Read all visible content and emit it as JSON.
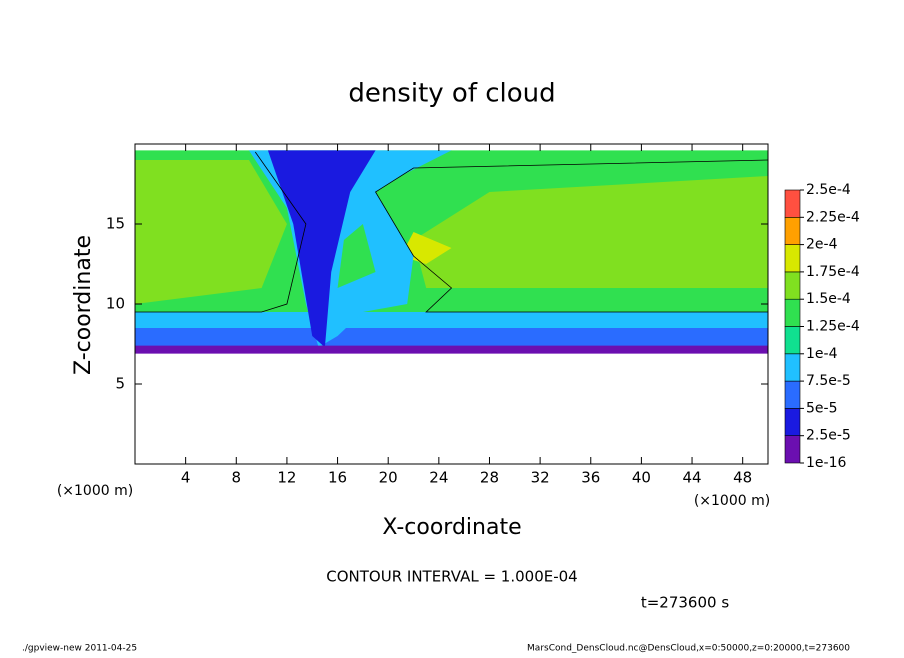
{
  "chart_data": {
    "type": "contour",
    "title": "density of cloud",
    "x_label": "X-coordinate",
    "y_label": "Z-coordinate",
    "x_unit": "(×1000 m)",
    "y_unit": "(×1000 m)",
    "xlim": [
      0,
      50
    ],
    "ylim": [
      0,
      20
    ],
    "xticks": [
      4,
      8,
      12,
      16,
      20,
      24,
      28,
      32,
      36,
      40,
      44,
      48
    ],
    "yticks": [
      5,
      10,
      15
    ],
    "levels": [
      {
        "value": 1e-16,
        "label": "1e-16"
      },
      {
        "value": 2.5e-05,
        "label": "2.5e-5"
      },
      {
        "value": 5e-05,
        "label": "5e-5"
      },
      {
        "value": 7.5e-05,
        "label": "7.5e-5"
      },
      {
        "value": 0.0001,
        "label": "1e-4"
      },
      {
        "value": 0.000125,
        "label": "1.25e-4"
      },
      {
        "value": 0.00015,
        "label": "1.5e-4"
      },
      {
        "value": 0.000175,
        "label": "1.75e-4"
      },
      {
        "value": 0.0002,
        "label": "2e-4"
      },
      {
        "value": 0.000225,
        "label": "2.25e-4"
      },
      {
        "value": 0.00025,
        "label": "2.5e-4"
      }
    ],
    "level_colors": [
      "#6b0fb0",
      "#1a1ae0",
      "#2a6cff",
      "#20c0ff",
      "#10e090",
      "#30e050",
      "#80e020",
      "#d8e800",
      "#ffa000",
      "#ff5040"
    ],
    "contour_interval": "CONTOUR INTERVAL = 1.000E-04",
    "time_label": "t=273600 s",
    "footer_left": "./gpview-new   2011-04-25",
    "footer_right": "MarsCond_DensCloud.nc@DensCloud,x=0:50000,z=0:20000,t=273600"
  }
}
